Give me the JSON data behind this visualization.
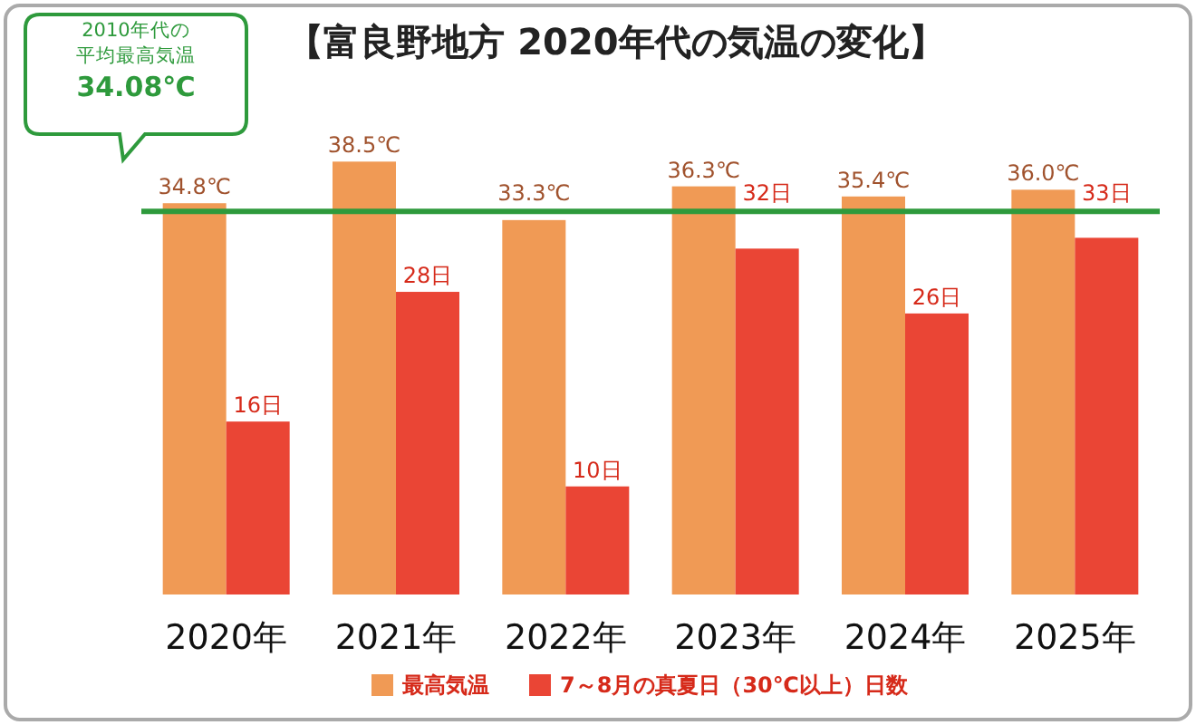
{
  "chart_data": {
    "type": "bar",
    "title": "【富良野地方 2020年代の気温の変化】",
    "categories": [
      "2020年",
      "2021年",
      "2022年",
      "2023年",
      "2024年",
      "2025年"
    ],
    "series": [
      {
        "name": "最高気温",
        "color": "#f09a55",
        "values": [
          34.8,
          38.5,
          33.3,
          36.3,
          35.4,
          36.0
        ],
        "value_labels": [
          "34.8℃",
          "38.5℃",
          "33.3℃",
          "36.3℃",
          "35.4℃",
          "36.0℃"
        ]
      },
      {
        "name": "7～8月の真夏日（30℃以上）日数",
        "color": "#ea4535",
        "axis": "y2",
        "values": [
          16,
          28,
          10,
          32,
          26,
          33
        ],
        "value_labels": [
          "16日",
          "28日",
          "10日",
          "32日",
          "26日",
          "33日"
        ]
      }
    ],
    "tick_labels": "x",
    "ref_lines": [
      {
        "axis": "y",
        "value": 34.08,
        "label": "2010年代の平均最高気温34.08℃",
        "color": "#2e9a3c"
      }
    ],
    "legend": "bottom"
  }
}
